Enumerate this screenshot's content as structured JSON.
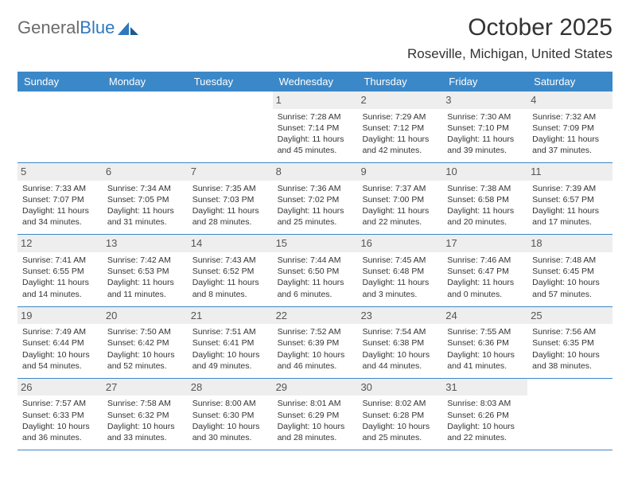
{
  "logo": {
    "part1": "General",
    "part2": "Blue"
  },
  "title": "October 2025",
  "location": "Roseville, Michigan, United States",
  "colors": {
    "header_bg": "#3b88c9",
    "header_text": "#ffffff",
    "daynum_bg": "#eeeeee",
    "border": "#3b88c9",
    "text": "#333333",
    "logo_gray": "#6b6b6b",
    "logo_blue": "#2f78bd"
  },
  "day_labels": [
    "Sunday",
    "Monday",
    "Tuesday",
    "Wednesday",
    "Thursday",
    "Friday",
    "Saturday"
  ],
  "weeks": [
    [
      {
        "empty": true
      },
      {
        "empty": true
      },
      {
        "empty": true
      },
      {
        "num": "1",
        "sunrise": "Sunrise: 7:28 AM",
        "sunset": "Sunset: 7:14 PM",
        "daylight": "Daylight: 11 hours and 45 minutes."
      },
      {
        "num": "2",
        "sunrise": "Sunrise: 7:29 AM",
        "sunset": "Sunset: 7:12 PM",
        "daylight": "Daylight: 11 hours and 42 minutes."
      },
      {
        "num": "3",
        "sunrise": "Sunrise: 7:30 AM",
        "sunset": "Sunset: 7:10 PM",
        "daylight": "Daylight: 11 hours and 39 minutes."
      },
      {
        "num": "4",
        "sunrise": "Sunrise: 7:32 AM",
        "sunset": "Sunset: 7:09 PM",
        "daylight": "Daylight: 11 hours and 37 minutes."
      }
    ],
    [
      {
        "num": "5",
        "sunrise": "Sunrise: 7:33 AM",
        "sunset": "Sunset: 7:07 PM",
        "daylight": "Daylight: 11 hours and 34 minutes."
      },
      {
        "num": "6",
        "sunrise": "Sunrise: 7:34 AM",
        "sunset": "Sunset: 7:05 PM",
        "daylight": "Daylight: 11 hours and 31 minutes."
      },
      {
        "num": "7",
        "sunrise": "Sunrise: 7:35 AM",
        "sunset": "Sunset: 7:03 PM",
        "daylight": "Daylight: 11 hours and 28 minutes."
      },
      {
        "num": "8",
        "sunrise": "Sunrise: 7:36 AM",
        "sunset": "Sunset: 7:02 PM",
        "daylight": "Daylight: 11 hours and 25 minutes."
      },
      {
        "num": "9",
        "sunrise": "Sunrise: 7:37 AM",
        "sunset": "Sunset: 7:00 PM",
        "daylight": "Daylight: 11 hours and 22 minutes."
      },
      {
        "num": "10",
        "sunrise": "Sunrise: 7:38 AM",
        "sunset": "Sunset: 6:58 PM",
        "daylight": "Daylight: 11 hours and 20 minutes."
      },
      {
        "num": "11",
        "sunrise": "Sunrise: 7:39 AM",
        "sunset": "Sunset: 6:57 PM",
        "daylight": "Daylight: 11 hours and 17 minutes."
      }
    ],
    [
      {
        "num": "12",
        "sunrise": "Sunrise: 7:41 AM",
        "sunset": "Sunset: 6:55 PM",
        "daylight": "Daylight: 11 hours and 14 minutes."
      },
      {
        "num": "13",
        "sunrise": "Sunrise: 7:42 AM",
        "sunset": "Sunset: 6:53 PM",
        "daylight": "Daylight: 11 hours and 11 minutes."
      },
      {
        "num": "14",
        "sunrise": "Sunrise: 7:43 AM",
        "sunset": "Sunset: 6:52 PM",
        "daylight": "Daylight: 11 hours and 8 minutes."
      },
      {
        "num": "15",
        "sunrise": "Sunrise: 7:44 AM",
        "sunset": "Sunset: 6:50 PM",
        "daylight": "Daylight: 11 hours and 6 minutes."
      },
      {
        "num": "16",
        "sunrise": "Sunrise: 7:45 AM",
        "sunset": "Sunset: 6:48 PM",
        "daylight": "Daylight: 11 hours and 3 minutes."
      },
      {
        "num": "17",
        "sunrise": "Sunrise: 7:46 AM",
        "sunset": "Sunset: 6:47 PM",
        "daylight": "Daylight: 11 hours and 0 minutes."
      },
      {
        "num": "18",
        "sunrise": "Sunrise: 7:48 AM",
        "sunset": "Sunset: 6:45 PM",
        "daylight": "Daylight: 10 hours and 57 minutes."
      }
    ],
    [
      {
        "num": "19",
        "sunrise": "Sunrise: 7:49 AM",
        "sunset": "Sunset: 6:44 PM",
        "daylight": "Daylight: 10 hours and 54 minutes."
      },
      {
        "num": "20",
        "sunrise": "Sunrise: 7:50 AM",
        "sunset": "Sunset: 6:42 PM",
        "daylight": "Daylight: 10 hours and 52 minutes."
      },
      {
        "num": "21",
        "sunrise": "Sunrise: 7:51 AM",
        "sunset": "Sunset: 6:41 PM",
        "daylight": "Daylight: 10 hours and 49 minutes."
      },
      {
        "num": "22",
        "sunrise": "Sunrise: 7:52 AM",
        "sunset": "Sunset: 6:39 PM",
        "daylight": "Daylight: 10 hours and 46 minutes."
      },
      {
        "num": "23",
        "sunrise": "Sunrise: 7:54 AM",
        "sunset": "Sunset: 6:38 PM",
        "daylight": "Daylight: 10 hours and 44 minutes."
      },
      {
        "num": "24",
        "sunrise": "Sunrise: 7:55 AM",
        "sunset": "Sunset: 6:36 PM",
        "daylight": "Daylight: 10 hours and 41 minutes."
      },
      {
        "num": "25",
        "sunrise": "Sunrise: 7:56 AM",
        "sunset": "Sunset: 6:35 PM",
        "daylight": "Daylight: 10 hours and 38 minutes."
      }
    ],
    [
      {
        "num": "26",
        "sunrise": "Sunrise: 7:57 AM",
        "sunset": "Sunset: 6:33 PM",
        "daylight": "Daylight: 10 hours and 36 minutes."
      },
      {
        "num": "27",
        "sunrise": "Sunrise: 7:58 AM",
        "sunset": "Sunset: 6:32 PM",
        "daylight": "Daylight: 10 hours and 33 minutes."
      },
      {
        "num": "28",
        "sunrise": "Sunrise: 8:00 AM",
        "sunset": "Sunset: 6:30 PM",
        "daylight": "Daylight: 10 hours and 30 minutes."
      },
      {
        "num": "29",
        "sunrise": "Sunrise: 8:01 AM",
        "sunset": "Sunset: 6:29 PM",
        "daylight": "Daylight: 10 hours and 28 minutes."
      },
      {
        "num": "30",
        "sunrise": "Sunrise: 8:02 AM",
        "sunset": "Sunset: 6:28 PM",
        "daylight": "Daylight: 10 hours and 25 minutes."
      },
      {
        "num": "31",
        "sunrise": "Sunrise: 8:03 AM",
        "sunset": "Sunset: 6:26 PM",
        "daylight": "Daylight: 10 hours and 22 minutes."
      },
      {
        "empty": true
      }
    ]
  ]
}
